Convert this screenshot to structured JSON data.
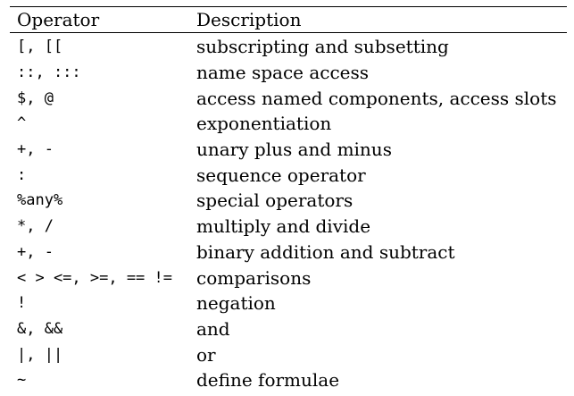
{
  "table": {
    "headers": {
      "operator": "Operator",
      "description": "Description"
    },
    "rows": [
      {
        "operator": "[, [[",
        "description": "subscripting and subsetting"
      },
      {
        "operator": "::, :::",
        "description": "name space access"
      },
      {
        "operator": "$, @",
        "description": "access named components, access slots"
      },
      {
        "operator": "^",
        "description": "exponentiation"
      },
      {
        "operator": "+, -",
        "description": "unary plus and minus"
      },
      {
        "operator": ":",
        "description": "sequence operator"
      },
      {
        "operator": "%any%",
        "description": "special operators"
      },
      {
        "operator": "*, /",
        "description": "multiply and divide"
      },
      {
        "operator": "+, -",
        "description": "binary addition and subtract"
      },
      {
        "operator": "< > <=, >=, == !=",
        "description": "comparisons"
      },
      {
        "operator": "!",
        "description": "negation"
      },
      {
        "operator": "&, &&",
        "description": "and"
      },
      {
        "operator": "|, ||",
        "description": "or"
      },
      {
        "operator": "~",
        "description": "define formulae"
      }
    ]
  }
}
